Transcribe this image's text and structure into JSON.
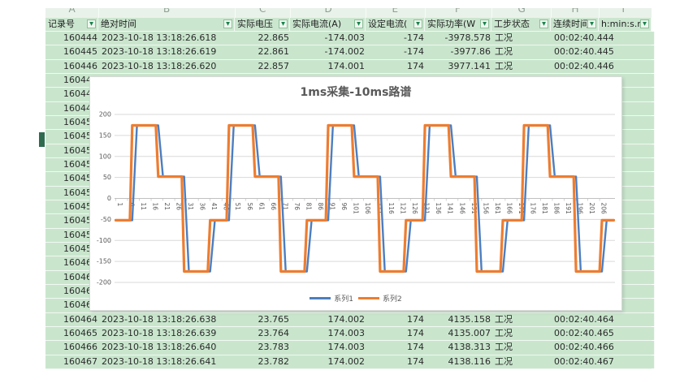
{
  "app": {
    "background": "#ffffff"
  },
  "sheet": {
    "column_letters": [
      "A",
      "B",
      "C",
      "D",
      "E",
      "F",
      "G",
      "H",
      "I"
    ],
    "columns": [
      {
        "label": "记录号"
      },
      {
        "label": "绝对时间"
      },
      {
        "label": "实际电压"
      },
      {
        "label": "实际电流(A)"
      },
      {
        "label": "设定电流("
      },
      {
        "label": "实际功率(W"
      },
      {
        "label": "工步状态"
      },
      {
        "label": "连续时间("
      },
      {
        "label": "h:min:s.m"
      }
    ],
    "rows": [
      {
        "record": "160444",
        "time": "2023-10-18 13:18:26.618",
        "voltage": "22.865",
        "current": "-174.003",
        "set_current": "-174",
        "power": "-3978.578",
        "status": "工况",
        "duration": "00:02:40.444"
      },
      {
        "record": "160445",
        "time": "2023-10-18 13:18:26.619",
        "voltage": "22.861",
        "current": "-174.002",
        "set_current": "-174",
        "power": "-3977.86",
        "status": "工况",
        "duration": "00:02:40.445"
      },
      {
        "record": "160446",
        "time": "2023-10-18 13:18:26.620",
        "voltage": "22.857",
        "current": "174.001",
        "set_current": "174",
        "power": "3977.141",
        "status": "工况",
        "duration": "00:02:40.446"
      },
      {
        "record": "160447"
      },
      {
        "record": "160448"
      },
      {
        "record": "160449"
      },
      {
        "record": "160450"
      },
      {
        "record": "160451"
      },
      {
        "record": "160452"
      },
      {
        "record": "160453"
      },
      {
        "record": "160454"
      },
      {
        "record": "160455"
      },
      {
        "record": "160456"
      },
      {
        "record": "160457"
      },
      {
        "record": "160458"
      },
      {
        "record": "160459"
      },
      {
        "record": "160460"
      },
      {
        "record": "160461"
      },
      {
        "record": "160462"
      },
      {
        "record": "160463"
      },
      {
        "record": "160464",
        "time": "2023-10-18 13:18:26.638",
        "voltage": "23.765",
        "current": "174.002",
        "set_current": "174",
        "power": "4135.158",
        "status": "工况",
        "duration": "00:02:40.464"
      },
      {
        "record": "160465",
        "time": "2023-10-18 13:18:26.639",
        "voltage": "23.764",
        "current": "174.003",
        "set_current": "174",
        "power": "4135.007",
        "status": "工况",
        "duration": "00:02:40.465"
      },
      {
        "record": "160466",
        "time": "2023-10-18 13:18:26.640",
        "voltage": "23.783",
        "current": "174.003",
        "set_current": "174",
        "power": "4138.313",
        "status": "工况",
        "duration": "00:02:40.466"
      },
      {
        "record": "160467",
        "time": "2023-10-18 13:18:26.641",
        "voltage": "23.782",
        "current": "174.002",
        "set_current": "174",
        "power": "4138.116",
        "status": "工况",
        "duration": "00:02:40.467"
      }
    ],
    "colors": {
      "cell_bg": "#c9e6cd",
      "gridline": "#f2f8f3",
      "letters_bg": "#e9f2ea",
      "filter_arrow": "#18834b"
    }
  },
  "chart": {
    "title": "1ms采集-10ms路谱"
  },
  "chart_data": {
    "type": "line",
    "title": "1ms采集-10ms路谱",
    "x_range": [
      1,
      212
    ],
    "x_tick_start": 1,
    "x_tick_step": 5,
    "x_tick_end": 206,
    "ylim": [
      -200,
      200
    ],
    "y_ticks": [
      200,
      150,
      100,
      50,
      0,
      -50,
      -100,
      -150,
      -200
    ],
    "grid": true,
    "legend_position": "bottom",
    "legend": [
      "系列1",
      "系列2"
    ],
    "series": [
      {
        "name": "系列1",
        "color": "#4d7ebf",
        "derivation": "same square waveform as 系列2 but lagging about 2 samples with ramped transitions"
      },
      {
        "name": "系列2",
        "color": "#ed7d31",
        "segments": [
          [
            1,
            7,
            -52
          ],
          [
            8,
            18,
            174
          ],
          [
            19,
            29,
            52
          ],
          [
            30,
            40,
            -174
          ],
          [
            41,
            48,
            -52
          ],
          [
            49,
            59,
            174
          ],
          [
            60,
            70,
            52
          ],
          [
            71,
            81,
            -174
          ],
          [
            82,
            90,
            -52
          ],
          [
            91,
            101,
            174
          ],
          [
            102,
            112,
            52
          ],
          [
            113,
            123,
            -174
          ],
          [
            124,
            131,
            -52
          ],
          [
            132,
            142,
            174
          ],
          [
            143,
            153,
            52
          ],
          [
            154,
            164,
            -174
          ],
          [
            165,
            173,
            -52
          ],
          [
            174,
            184,
            174
          ],
          [
            185,
            195,
            52
          ],
          [
            196,
            206,
            -174
          ],
          [
            207,
            212,
            -52
          ]
        ]
      }
    ]
  }
}
